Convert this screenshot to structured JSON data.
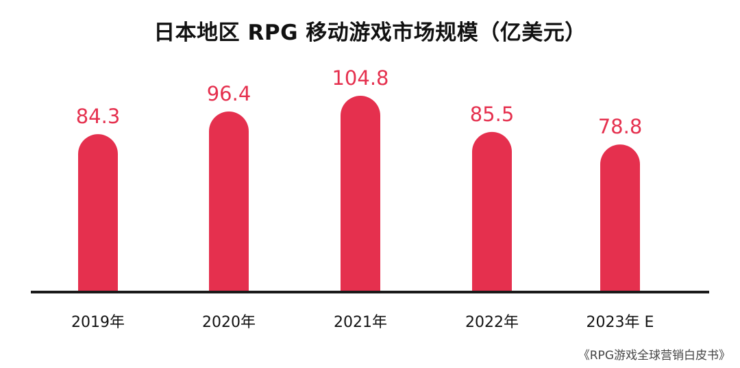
{
  "chart_data": {
    "type": "bar",
    "title": "日本地区 RPG 移动游戏市场规模（亿美元）",
    "categories": [
      "2019年",
      "2020年",
      "2021年",
      "2022年",
      "2023年 E"
    ],
    "series": [
      {
        "values": [
          84.3,
          96.4,
          104.8,
          85.5,
          78.8
        ]
      }
    ],
    "data_labels": [
      "84.3",
      "96.4",
      "104.8",
      "85.5",
      "78.8"
    ],
    "xlabel": "",
    "ylabel": "",
    "ylim": [
      0,
      104.8
    ],
    "grid": false,
    "legend": "none",
    "colors": {
      "bar": "#e5304e",
      "label": "#e5304e",
      "axis": "#1a1a1a"
    }
  },
  "source": "《RPG游戏全球营销白皮书》"
}
